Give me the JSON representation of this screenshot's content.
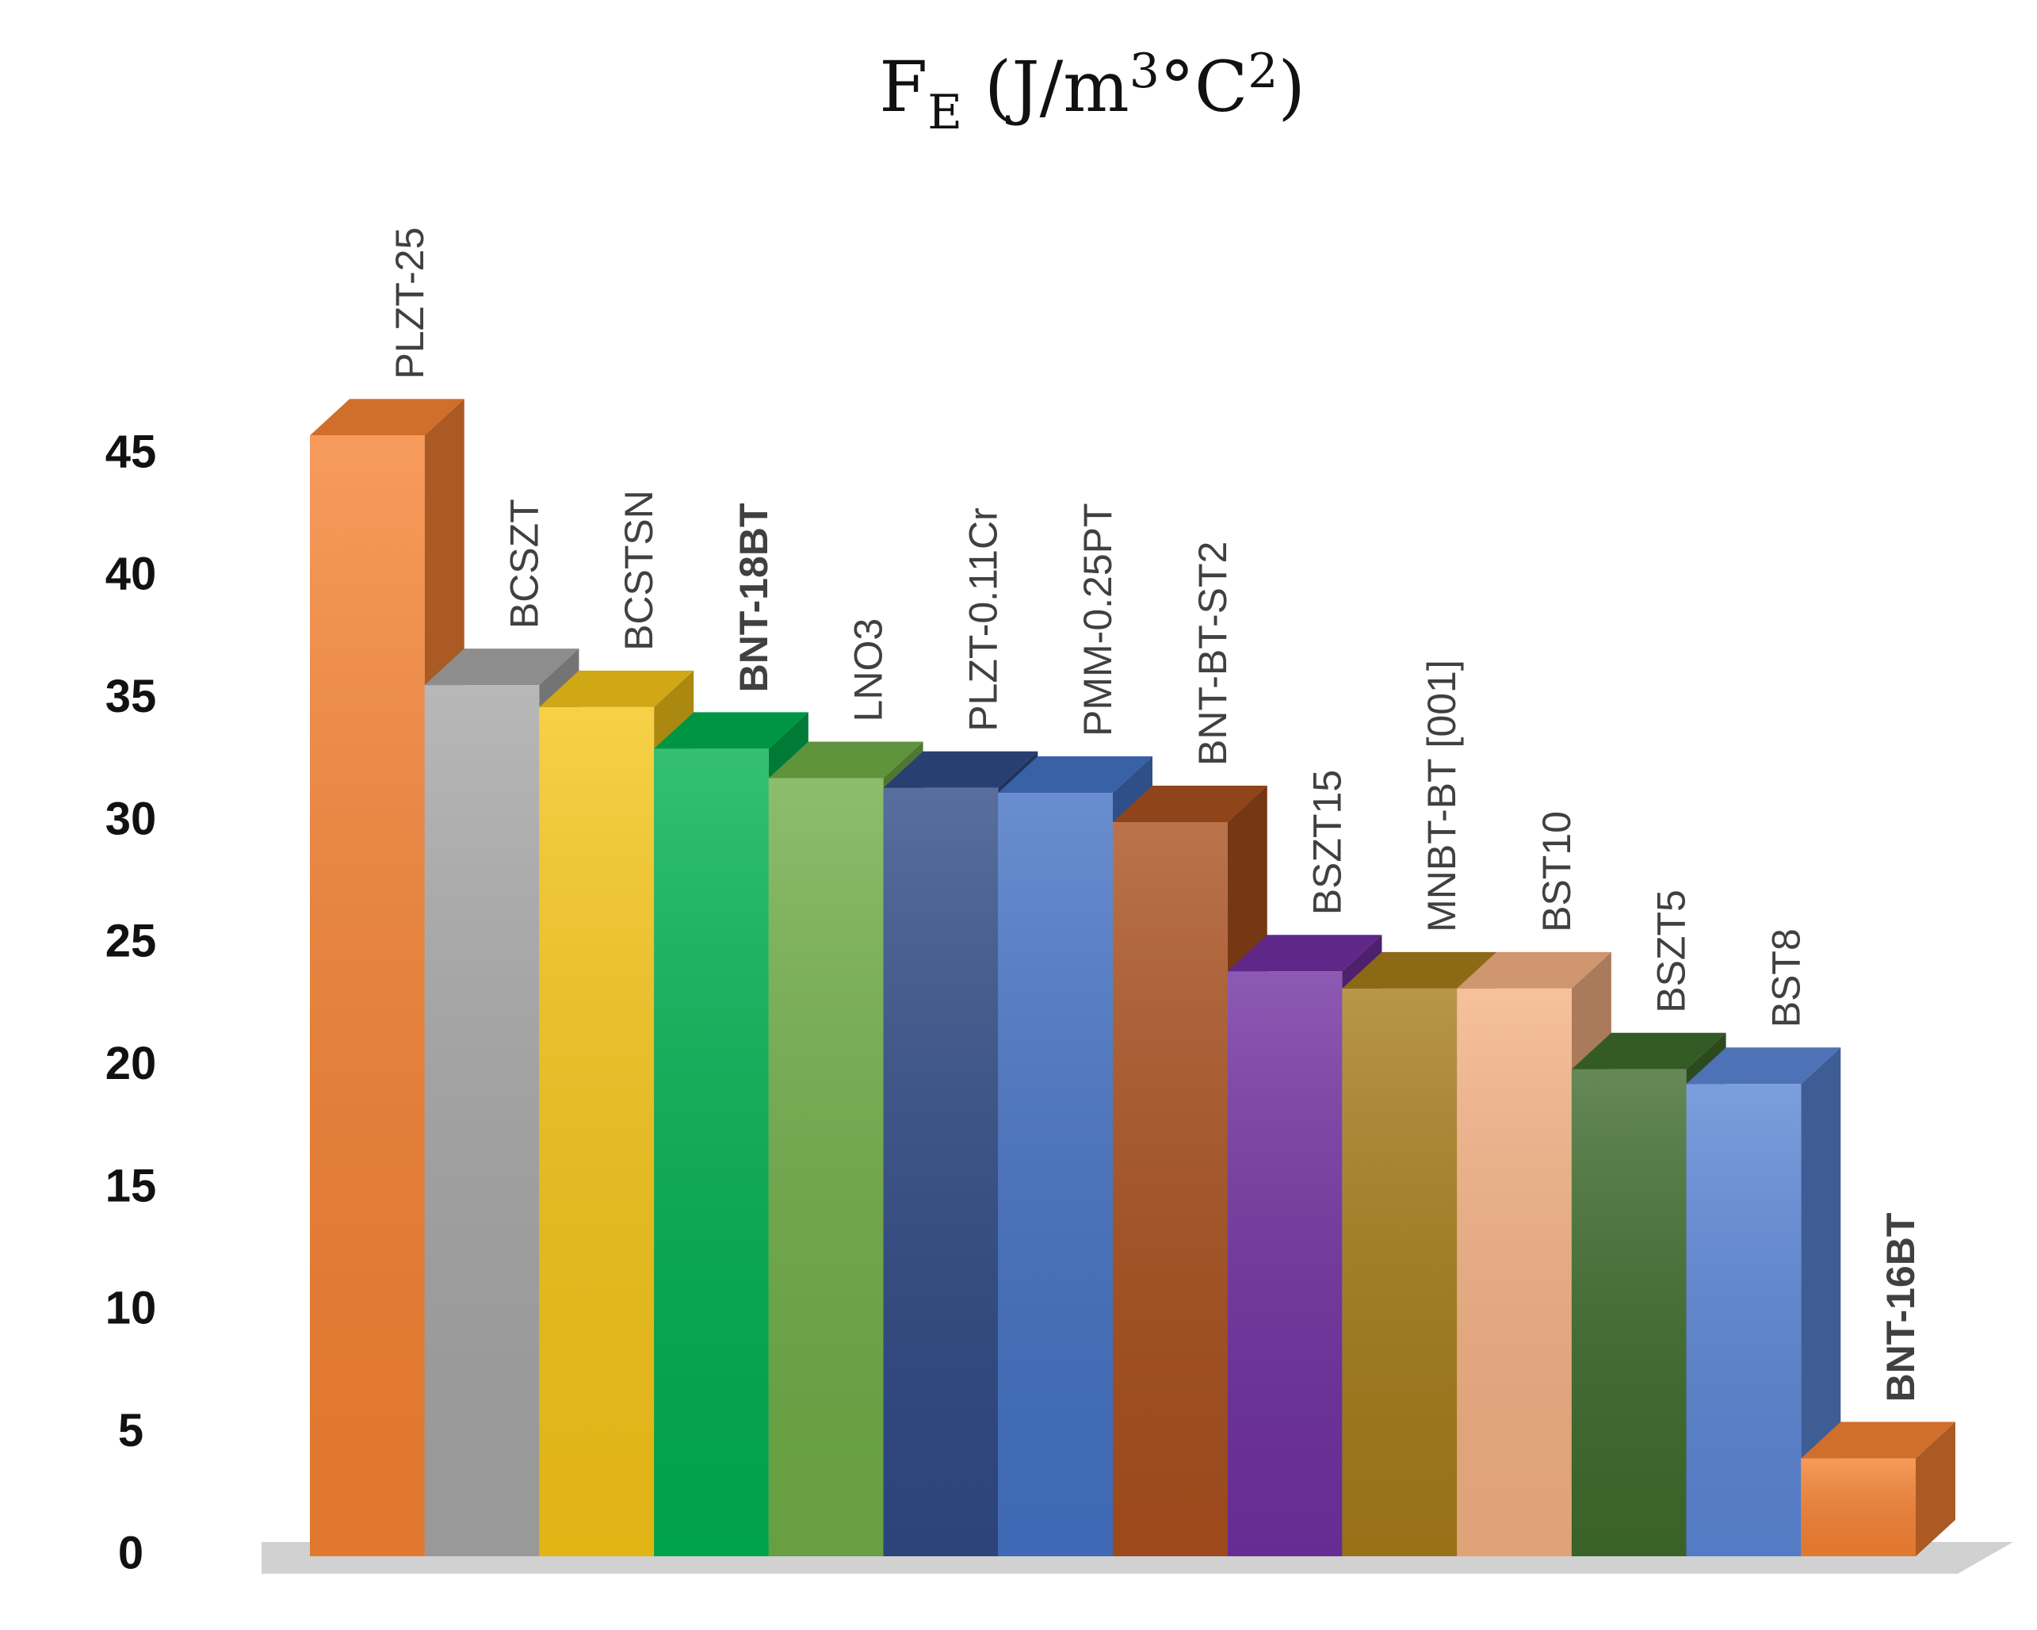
{
  "chart_data": {
    "type": "bar3d",
    "title_parts": [
      "F",
      "E",
      " (J/m",
      "3",
      "°C",
      "2",
      ")"
    ],
    "categories": [
      "PLZT-25",
      "BCSZT",
      "BCSTSN",
      "BNT-18BT",
      "LNO3",
      "PLZT-0.11Cr",
      "PMM-0.25PT",
      "BNT-BT-ST2",
      "BSZT15",
      "MNBT-BT [001]",
      "BST10",
      "BSZT5",
      "BST8",
      "BNT-16BT"
    ],
    "values": [
      45.8,
      35.6,
      34.7,
      33.0,
      31.8,
      31.4,
      31.2,
      30.0,
      23.9,
      23.2,
      23.2,
      19.9,
      19.3,
      4.0
    ],
    "colors": [
      "#f58233",
      "#a6a6a6",
      "#f5c518",
      "#00b050",
      "#70ad47",
      "#2f4a85",
      "#4472c4",
      "#a9501e",
      "#7030a0",
      "#a67c1a",
      "#f4b183",
      "#3f6b2c",
      "#5b86d6",
      "#f58233"
    ],
    "highlight": [
      3,
      13
    ],
    "highlight_color": "#ff0000",
    "ylim": [
      0,
      45
    ],
    "yticks": [
      0,
      5,
      10,
      15,
      20,
      25,
      30,
      35,
      40,
      45
    ],
    "grid": false
  }
}
